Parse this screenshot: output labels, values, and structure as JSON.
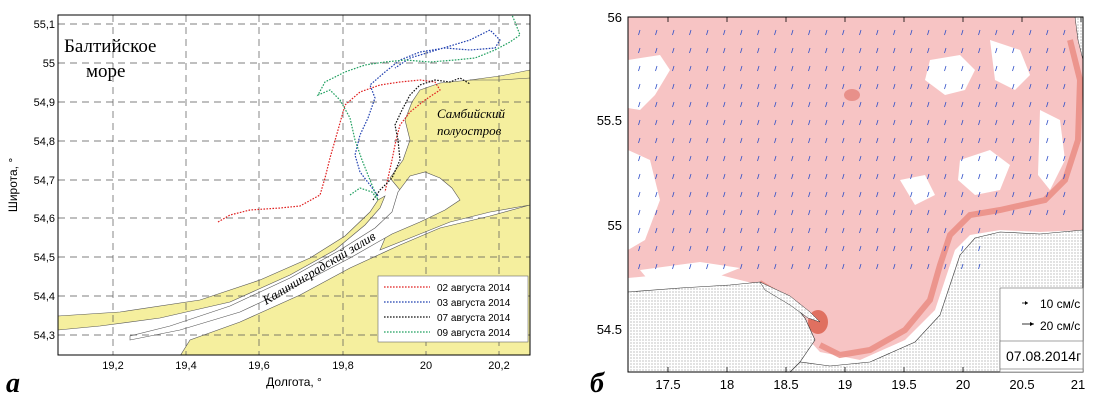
{
  "panel_a": {
    "letter": "а",
    "sea_label_line1": "Балтийское",
    "sea_label_line2": "море",
    "peninsula_line1": "Самбийский",
    "peninsula_line2": "полуостров",
    "bay_label": "Калининградский залив",
    "xlabel": "Долгота, °",
    "ylabel": "Широта, °",
    "xticks": [
      "19,2",
      "19,4",
      "19,6",
      "19,8",
      "20",
      "20,2"
    ],
    "yticks": [
      "55,1",
      "55",
      "54,9",
      "54,8",
      "54,7",
      "54,6",
      "54,5",
      "54,4",
      "54,3"
    ],
    "legend": [
      {
        "label": "02 августа 2014",
        "color": "#e02020"
      },
      {
        "label": "03 августа 2014",
        "color": "#2040b0"
      },
      {
        "label": "07 августа 2014",
        "color": "#101010"
      },
      {
        "label": "09 августа 2014",
        "color": "#20a060"
      }
    ],
    "land_color": "#f5ef9e"
  },
  "panel_b": {
    "letter": "б",
    "xticks": [
      "17.5",
      "18",
      "18.5",
      "19",
      "19.5",
      "20",
      "20.5",
      "21"
    ],
    "yticks": [
      "56",
      "55.5",
      "55",
      "54.5"
    ],
    "scale_10": "10 см/с",
    "scale_20": "20 см/с",
    "date": "07.08.2014г",
    "sea_color": "#f7c4c4"
  }
}
